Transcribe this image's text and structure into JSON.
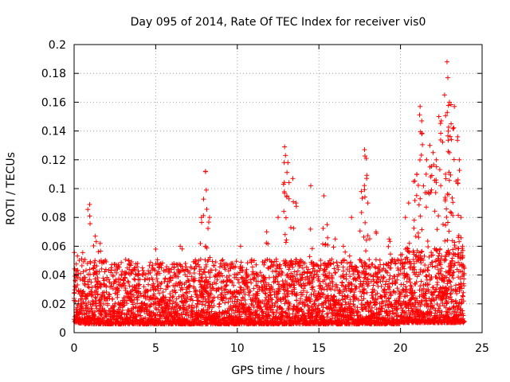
{
  "chart_data": {
    "type": "scatter",
    "title": "Day 095 of 2014, Rate Of TEC Index for receiver vis0",
    "xlabel": "GPS time / hours",
    "ylabel": "ROTI / TECUs",
    "xlim": [
      0,
      25
    ],
    "ylim": [
      0,
      0.2
    ],
    "xticks": [
      0,
      5,
      10,
      15,
      20,
      25
    ],
    "yticks": [
      0,
      0.02,
      0.04,
      0.06,
      0.08,
      0.1,
      0.12,
      0.14,
      0.16,
      0.18,
      0.2
    ],
    "xtick_labels": [
      "0",
      "5",
      "10",
      "15",
      "20",
      "25"
    ],
    "ytick_labels": [
      "0",
      "0.02",
      "0.04",
      "0.06",
      "0.08",
      "0.1",
      "0.12",
      "0.14",
      "0.16",
      "0.18",
      "0.2"
    ],
    "grid": true,
    "marker": "+",
    "color": "#ff0000",
    "x_range_observed": [
      0,
      23.9
    ],
    "series": [
      {
        "name": "vis0",
        "points": [
          [
            0.95,
            0.089
          ],
          [
            1.3,
            0.067
          ],
          [
            1.6,
            0.062
          ],
          [
            2.7,
            0.046
          ],
          [
            3.9,
            0.04
          ],
          [
            5.0,
            0.058
          ],
          [
            6.5,
            0.06
          ],
          [
            7.8,
            0.08
          ],
          [
            8.05,
            0.112
          ],
          [
            8.1,
            0.099
          ],
          [
            8.3,
            0.08
          ],
          [
            10.2,
            0.06
          ],
          [
            11.8,
            0.07
          ],
          [
            12.5,
            0.08
          ],
          [
            12.9,
            0.129
          ],
          [
            12.95,
            0.123
          ],
          [
            13.1,
            0.118
          ],
          [
            13.4,
            0.107
          ],
          [
            13.6,
            0.09
          ],
          [
            14.5,
            0.102
          ],
          [
            15.3,
            0.095
          ],
          [
            15.5,
            0.075
          ],
          [
            16.0,
            0.065
          ],
          [
            16.5,
            0.06
          ],
          [
            17.0,
            0.08
          ],
          [
            17.6,
            0.098
          ],
          [
            17.8,
            0.127
          ],
          [
            17.9,
            0.121
          ],
          [
            18.0,
            0.09
          ],
          [
            18.5,
            0.07
          ],
          [
            19.3,
            0.065
          ],
          [
            20.3,
            0.08
          ],
          [
            20.5,
            0.09
          ],
          [
            20.8,
            0.105
          ],
          [
            21.0,
            0.11
          ],
          [
            21.2,
            0.157
          ],
          [
            21.3,
            0.147
          ],
          [
            21.6,
            0.12
          ],
          [
            21.8,
            0.13
          ],
          [
            22.0,
            0.125
          ],
          [
            22.2,
            0.12
          ],
          [
            22.35,
            0.15
          ],
          [
            22.5,
            0.147
          ],
          [
            22.7,
            0.165
          ],
          [
            22.85,
            0.188
          ],
          [
            22.9,
            0.177
          ],
          [
            23.0,
            0.16
          ],
          [
            23.1,
            0.145
          ],
          [
            23.3,
            0.157
          ],
          [
            23.5,
            0.136
          ],
          [
            23.6,
            0.12
          ],
          [
            23.7,
            0.08
          ],
          [
            23.8,
            0.06
          ]
        ]
      }
    ]
  }
}
